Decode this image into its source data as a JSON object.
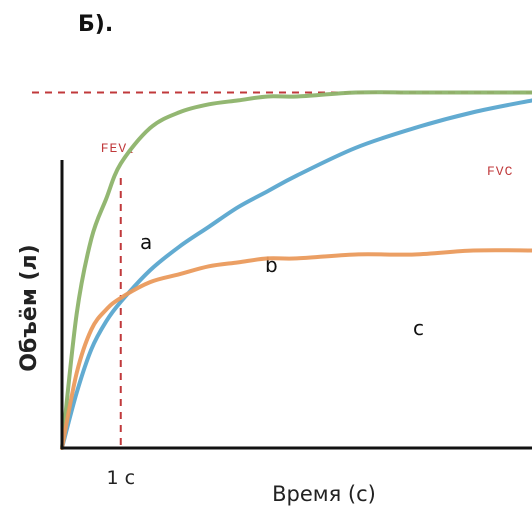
{
  "panel_label": "Б).",
  "colors": {
    "a": "#8db36a",
    "b": "#5aa7cf",
    "c": "#ea9a5c",
    "reference": "#c0393b",
    "axis": "#111111"
  },
  "chart_data": {
    "type": "line",
    "title": "",
    "xlabel": "Время (с)",
    "ylabel": "Объём (л)",
    "xticks": [
      {
        "value": 1,
        "label": "1 с"
      }
    ],
    "xlim": [
      0,
      8
    ],
    "ylim": [
      0,
      1.0
    ],
    "grid": false,
    "reference_lines": [
      {
        "name": "FEV1",
        "label": "FEV₁",
        "axis": "x",
        "value": 1
      },
      {
        "name": "FVC",
        "label": "FVC",
        "axis": "y",
        "value": 0.9
      }
    ],
    "series": [
      {
        "name": "a",
        "label": "a",
        "color": "#8db36a",
        "x": [
          0,
          0.25,
          0.5,
          0.75,
          1,
          1.5,
          2,
          2.5,
          3,
          3.5,
          4,
          5,
          6,
          7,
          8
        ],
        "y": [
          0,
          0.34,
          0.53,
          0.63,
          0.72,
          0.81,
          0.85,
          0.87,
          0.88,
          0.89,
          0.89,
          0.9,
          0.9,
          0.9,
          0.9
        ]
      },
      {
        "name": "b",
        "label": "b",
        "color": "#5aa7cf",
        "x": [
          0,
          0.25,
          0.5,
          0.75,
          1,
          1.5,
          2,
          2.5,
          3,
          3.5,
          4,
          5,
          6,
          7,
          8
        ],
        "y": [
          0,
          0.14,
          0.25,
          0.32,
          0.37,
          0.45,
          0.51,
          0.56,
          0.61,
          0.65,
          0.69,
          0.76,
          0.81,
          0.85,
          0.88
        ]
      },
      {
        "name": "c",
        "label": "c",
        "color": "#ea9a5c",
        "x": [
          0,
          0.25,
          0.5,
          0.75,
          1,
          1.5,
          2,
          2.5,
          3,
          3.5,
          4,
          5,
          6,
          7,
          8
        ],
        "y": [
          0,
          0.19,
          0.3,
          0.35,
          0.38,
          0.42,
          0.44,
          0.46,
          0.47,
          0.48,
          0.48,
          0.49,
          0.49,
          0.5,
          0.5
        ]
      }
    ]
  }
}
